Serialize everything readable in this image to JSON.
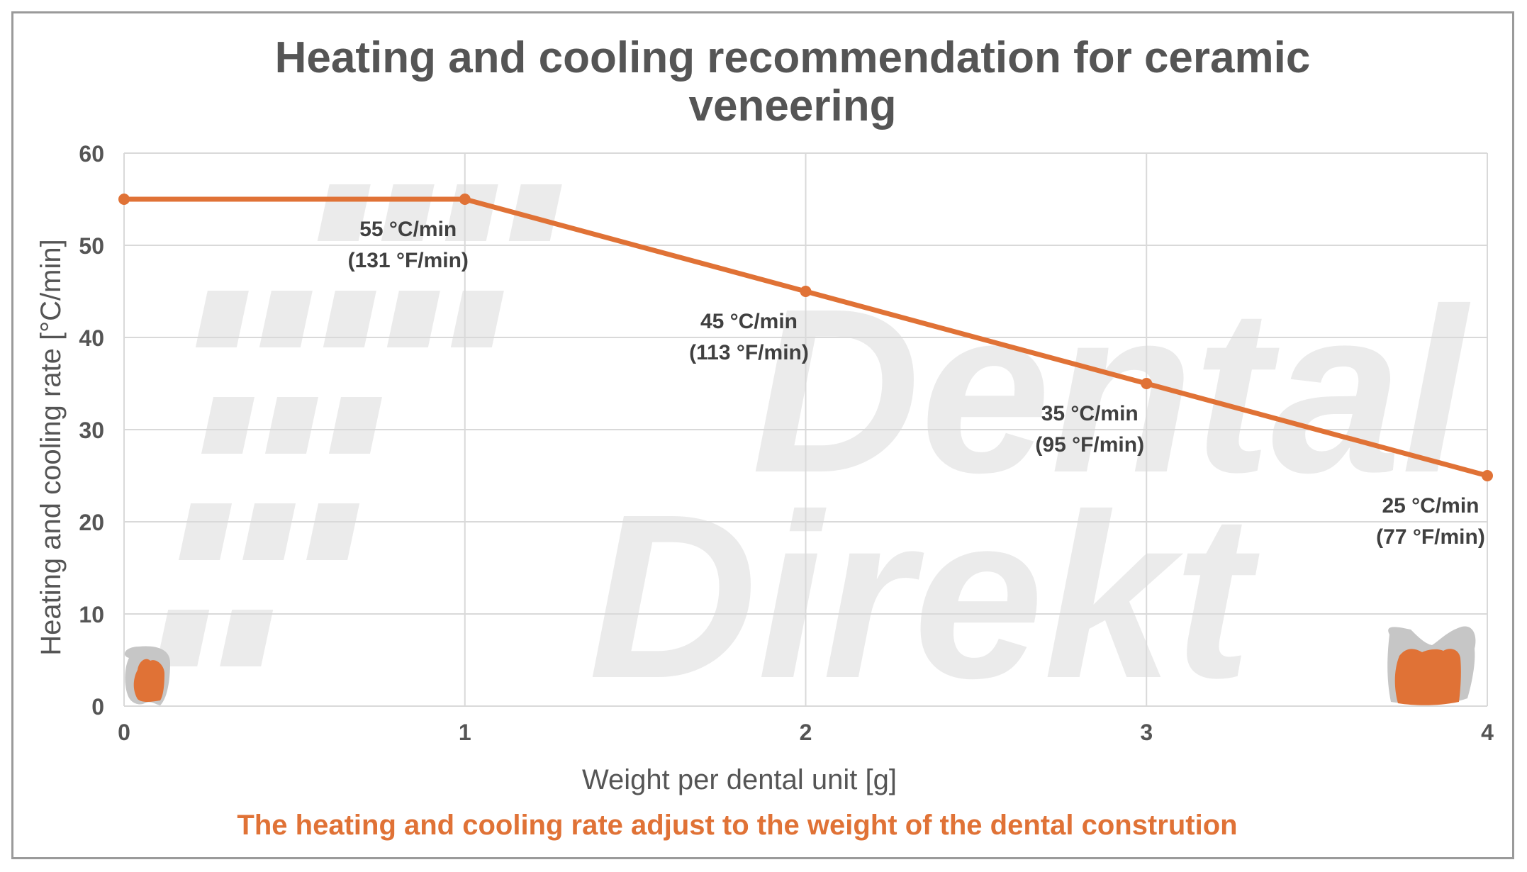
{
  "chart_data": {
    "type": "line",
    "title": "Heating and cooling recommendation for ceramic veneering",
    "title_lines": [
      "Heating and cooling recommendation for ceramic",
      "veneering"
    ],
    "xlabel": "Weight per dental unit [g]",
    "ylabel": "Heating and cooling rate [°C/min]",
    "subtitle": "The heating and cooling rate adjust to the weight of the dental constrution",
    "xlim": [
      0,
      4
    ],
    "ylim": [
      0,
      60
    ],
    "x_ticks": [
      "0",
      "1",
      "2",
      "3",
      "4"
    ],
    "y_ticks": [
      "0",
      "10",
      "20",
      "30",
      "40",
      "50",
      "60"
    ],
    "grid": true,
    "series": [
      {
        "x": [
          0,
          1,
          2,
          3,
          4
        ],
        "values": [
          55,
          55,
          45,
          35,
          25
        ]
      }
    ],
    "data_labels": [
      {
        "x": 1,
        "y": 55,
        "line1": "55 °C/min",
        "line2": "(131 °F/min)"
      },
      {
        "x": 2,
        "y": 45,
        "line1": "45 °C/min",
        "line2": "(113 °F/min)"
      },
      {
        "x": 3,
        "y": 35,
        "line1": "35 °C/min",
        "line2": "(95 °F/min)"
      },
      {
        "x": 4,
        "y": 25,
        "line1": "25 °C/min",
        "line2": "(77 °F/min)"
      }
    ],
    "watermark": [
      "Dental",
      "Direkt"
    ],
    "colors": {
      "series": "#E07236",
      "title": "#555555",
      "subtitle": "#E07236",
      "grid": "#d9d9d9",
      "axis_text": "#555555",
      "watermark": "#ebebeb",
      "tooth_gray": "#c6c6c6"
    },
    "icons": [
      "small-tooth-icon",
      "large-crown-icon"
    ]
  }
}
